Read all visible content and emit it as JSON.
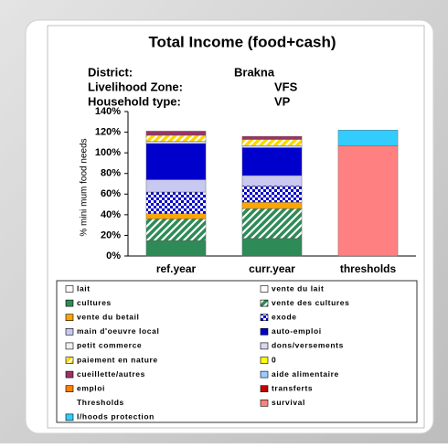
{
  "chart_data": {
    "type": "stacked_bar",
    "title": "Total Income (food+cash)",
    "info": [
      {
        "label": "District:",
        "value": "Brakna"
      },
      {
        "label": "Livelihood Zone:",
        "value": "VFS"
      },
      {
        "label": "Household type:",
        "value": "VP"
      }
    ],
    "y_axis_label": "% mini mum food needs",
    "categories": [
      "ref.year",
      "curr.year",
      "thresholds"
    ],
    "ylim": [
      0,
      140
    ],
    "yticks": [
      {
        "value": 0,
        "label": "0%"
      },
      {
        "value": 20,
        "label": "20%"
      },
      {
        "value": 40,
        "label": "40%"
      },
      {
        "value": 60,
        "label": "60%"
      },
      {
        "value": 80,
        "label": "80%"
      },
      {
        "value": 100,
        "label": "100%"
      },
      {
        "value": 120,
        "label": "120%"
      },
      {
        "value": 140,
        "label": "140%"
      }
    ],
    "legend_heading": "Thresholds",
    "series": [
      {
        "name": "lait",
        "color": "#ffffff",
        "values": [
          null,
          null,
          null
        ]
      },
      {
        "name": "vente du lait",
        "color": "#ffffff",
        "values": [
          null,
          null,
          null
        ]
      },
      {
        "name": "cultures",
        "color": "#2e8b57",
        "values": [
          15,
          17,
          null
        ]
      },
      {
        "name": "vente des cultures",
        "color": "#2e8b57",
        "pattern": "diagonal",
        "values": [
          21,
          29,
          null
        ]
      },
      {
        "name": "vente du betail",
        "color": "#ffa500",
        "values": [
          5,
          6,
          null
        ]
      },
      {
        "name": "exode",
        "color": "#0000cd",
        "pattern": "checker",
        "values": [
          21,
          16,
          null
        ]
      },
      {
        "name": "main d'oeuvre local",
        "color": "#c8c8f0",
        "values": [
          12,
          10,
          null
        ]
      },
      {
        "name": "auto-emploi",
        "color": "#0000cd",
        "values": [
          35,
          27,
          null
        ]
      },
      {
        "name": "petit commerce",
        "color": "#f0f0f0",
        "values": [
          null,
          null,
          null
        ]
      },
      {
        "name": "dons/versements",
        "color": "#d8d8f0",
        "values": [
          2,
          2,
          null
        ]
      },
      {
        "name": "paiement en nature",
        "color": "#ffd700",
        "pattern": "diagonal",
        "values": [
          6,
          6,
          null
        ]
      },
      {
        "name": "0",
        "color": "#ffff00",
        "values": [
          null,
          null,
          null
        ]
      },
      {
        "name": "cueillette/autres",
        "color": "#993366",
        "values": [
          4,
          3,
          null
        ]
      },
      {
        "name": "aide alimentaire",
        "color": "#99ccff",
        "values": [
          null,
          null,
          null
        ]
      },
      {
        "name": "emploi",
        "color": "#ff8000",
        "values": [
          null,
          null,
          null
        ]
      },
      {
        "name": "transferts",
        "color": "#c00000",
        "values": [
          null,
          null,
          null
        ]
      },
      {
        "name": "survival",
        "color": "#ff8080",
        "values": [
          null,
          null,
          107
        ]
      },
      {
        "name": "l/hoods protection",
        "color": "#33ccff",
        "values": [
          null,
          null,
          15
        ]
      }
    ]
  }
}
